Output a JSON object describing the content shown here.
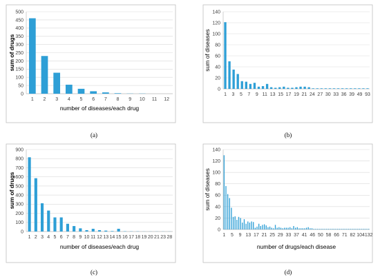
{
  "chart_data": [
    {
      "type": "bar",
      "panel_label": "(a)",
      "xlabel": "number of diseases/each drug",
      "ylabel": "sum of drugs",
      "ylim": [
        0,
        500
      ],
      "ytick_step": 50,
      "grid": true,
      "x": [
        1,
        2,
        3,
        4,
        5,
        6,
        7,
        8,
        9,
        10,
        11,
        12
      ],
      "values": [
        460,
        230,
        128,
        55,
        30,
        15,
        8,
        3,
        1,
        1,
        0,
        0
      ],
      "xtick_labels": [
        "1",
        "2",
        "3",
        "4",
        "5",
        "6",
        "7",
        "8",
        "9",
        "10",
        "11",
        "12"
      ]
    },
    {
      "type": "bar",
      "panel_label": "(b)",
      "xlabel": "",
      "ylabel": "sum of diseases",
      "ylim": [
        0,
        140
      ],
      "ytick_step": 20,
      "grid": true,
      "x": [
        1,
        2,
        3,
        4,
        5,
        6,
        7,
        8,
        9,
        10,
        11,
        12,
        13,
        14,
        15,
        16,
        17,
        18,
        19,
        20,
        21,
        22,
        23,
        24,
        25,
        26,
        27,
        28,
        29,
        30,
        31,
        32,
        33,
        34,
        35
      ],
      "values": [
        121,
        50,
        35,
        27,
        14,
        13,
        9,
        11,
        4,
        5,
        9,
        3,
        2,
        3,
        4,
        2,
        2,
        3,
        4,
        4,
        3,
        1,
        1,
        1,
        1,
        1,
        1,
        1,
        1,
        1,
        1,
        1,
        1,
        1,
        1
      ],
      "xtick_labels": [
        "1",
        "3",
        "5",
        "7",
        "9",
        "11",
        "13",
        "15",
        "17",
        "19",
        "21",
        "24",
        "27",
        "30",
        "33",
        "36",
        "39",
        "49",
        "93"
      ]
    },
    {
      "type": "bar",
      "panel_label": "(c)",
      "xlabel": "number of diseases/each drug",
      "ylabel": "sum of drugs",
      "ylim": [
        0,
        900
      ],
      "ytick_step": 100,
      "grid": true,
      "x": [
        1,
        2,
        3,
        4,
        5,
        6,
        7,
        8,
        9,
        10,
        11,
        12,
        13,
        14,
        15,
        16,
        17,
        18,
        19,
        20,
        21,
        23,
        28
      ],
      "values": [
        815,
        585,
        310,
        230,
        155,
        155,
        85,
        60,
        35,
        15,
        30,
        15,
        10,
        5,
        30,
        3,
        2,
        2,
        1,
        1,
        1,
        1,
        1
      ],
      "xtick_labels": [
        "1",
        "2",
        "3",
        "4",
        "5",
        "6",
        "7",
        "8",
        "9",
        "10",
        "11",
        "12",
        "13",
        "14",
        "15",
        "16",
        "17",
        "18",
        "19",
        "20",
        "21",
        "23",
        "28"
      ]
    },
    {
      "type": "bar",
      "panel_label": "(d)",
      "xlabel": "number of drugs/each disease",
      "ylabel": "sum of diseases",
      "ylim": [
        0,
        140
      ],
      "ytick_step": 20,
      "grid": true,
      "values": [
        130,
        76,
        62,
        55,
        38,
        22,
        23,
        17,
        22,
        20,
        12,
        18,
        10,
        14,
        12,
        14,
        13,
        3,
        5,
        10,
        6,
        8,
        9,
        7,
        4,
        5,
        3,
        2,
        8,
        3,
        4,
        3,
        2,
        3,
        3,
        3,
        4,
        2,
        6,
        3,
        4,
        2,
        2,
        2,
        2,
        3,
        4,
        2,
        2,
        1,
        1,
        1,
        1,
        1,
        1,
        1,
        1,
        1,
        1,
        1,
        1,
        1,
        1,
        1,
        1,
        1,
        1,
        1,
        1,
        1,
        1,
        1,
        1,
        1,
        1,
        1,
        1,
        1,
        1,
        1
      ],
      "xtick_labels": [
        "1",
        "5",
        "9",
        "13",
        "17",
        "21",
        "25",
        "29",
        "33",
        "37",
        "41",
        "46",
        "50",
        "58",
        "66",
        "71",
        "82",
        "104",
        "132"
      ]
    }
  ]
}
